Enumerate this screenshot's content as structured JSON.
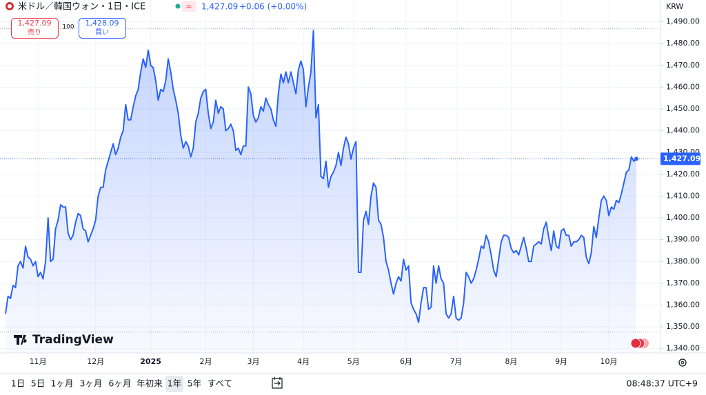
{
  "header": {
    "symbol": "米ドル／韓国ウォン・1日・ICE",
    "price": "1,427.09",
    "change": "+0.06 (+0.00%)",
    "sell": {
      "price": "1,427.09",
      "label": "売り"
    },
    "spread": "100",
    "buy": {
      "price": "1,428.09",
      "label": "買い"
    }
  },
  "brand": "TradingView",
  "toolbar": {
    "ranges": [
      "1日",
      "5日",
      "1ヶ月",
      "3ヶ月",
      "6ヶ月",
      "年初来",
      "1年",
      "5年",
      "すべて"
    ],
    "active": "1年",
    "clock": "08:48:37 UTC+9"
  },
  "chart_data": {
    "type": "area",
    "currency": "KRW",
    "color": "#2962ff",
    "categories": [
      null,
      null,
      null,
      null,
      null,
      null,
      null,
      null,
      null,
      null,
      null,
      null,
      null,
      "11月",
      null,
      null,
      null,
      null,
      null,
      null,
      null,
      null,
      null,
      null,
      null,
      null,
      null,
      null,
      null,
      null,
      null,
      null,
      null,
      null,
      null,
      null,
      "12月",
      null,
      null,
      null,
      null,
      null,
      null,
      null,
      null,
      null,
      null,
      null,
      null,
      null,
      null,
      null,
      null,
      null,
      null,
      null,
      null,
      null,
      "2025",
      null,
      null,
      null,
      null,
      null,
      null,
      null,
      null,
      null,
      null,
      null,
      null,
      null,
      null,
      null,
      null,
      null,
      null,
      null,
      null,
      null,
      "2月",
      null,
      null,
      null,
      null,
      null,
      null,
      null,
      null,
      null,
      null,
      null,
      null,
      null,
      null,
      null,
      null,
      null,
      null,
      "3月",
      null,
      null,
      null,
      null,
      null,
      null,
      null,
      null,
      null,
      null,
      null,
      null,
      null,
      null,
      null,
      null,
      null,
      null,
      null,
      "4月",
      null,
      null,
      null,
      null,
      null,
      null,
      null,
      null,
      null,
      null,
      null,
      null,
      null,
      null,
      null,
      null,
      null,
      null,
      null,
      "5月",
      null,
      null,
      null,
      null,
      null,
      null,
      null,
      null,
      null,
      null,
      null,
      null,
      null,
      null,
      null,
      null,
      null,
      null,
      null,
      null,
      "6月",
      null,
      null,
      null,
      null,
      null,
      null,
      null,
      null,
      null,
      null,
      null,
      null,
      null,
      null,
      null,
      null,
      null,
      null,
      null,
      "7月",
      null,
      null,
      null,
      null,
      null,
      null,
      null,
      null,
      null,
      null,
      null,
      null,
      null,
      null,
      null,
      null,
      null,
      null,
      null,
      null,
      null,
      "8月",
      null,
      null,
      null,
      null,
      null,
      null,
      null,
      null,
      null,
      null,
      null,
      null,
      null,
      null,
      null,
      null,
      null,
      null,
      null,
      "9月",
      null,
      null,
      null,
      null,
      null,
      null,
      null,
      null,
      null,
      null,
      null,
      null,
      null,
      null,
      null,
      null,
      null,
      null,
      "10月",
      null,
      null,
      null,
      null,
      null,
      null,
      null,
      null,
      null,
      null,
      null
    ],
    "values": [
      1356,
      1364,
      1363,
      1369,
      1368,
      1378,
      1380,
      1377,
      1387,
      1382,
      1381,
      1378,
      1380,
      1373,
      1375,
      1372,
      1380,
      1400,
      1380,
      1381,
      1395,
      1399,
      1406,
      1405,
      1405,
      1393,
      1390,
      1392,
      1398,
      1402,
      1401,
      1395,
      1394,
      1389,
      1392,
      1395,
      1399,
      1410,
      1414,
      1414,
      1422,
      1426,
      1430,
      1434,
      1429,
      1432,
      1437,
      1440,
      1452,
      1445,
      1445,
      1451,
      1456,
      1459,
      1467,
      1473,
      1469,
      1477,
      1470,
      1469,
      1463,
      1454,
      1459,
      1458,
      1463,
      1473,
      1467,
      1459,
      1454,
      1448,
      1438,
      1432,
      1435,
      1433,
      1428,
      1432,
      1444,
      1448,
      1455,
      1458,
      1459,
      1448,
      1441,
      1444,
      1454,
      1448,
      1451,
      1450,
      1440,
      1441,
      1443,
      1440,
      1431,
      1432,
      1429,
      1433,
      1433,
      1460,
      1457,
      1447,
      1444,
      1446,
      1451,
      1449,
      1455,
      1452,
      1450,
      1445,
      1442,
      1457,
      1466,
      1462,
      1467,
      1462,
      1467,
      1462,
      1457,
      1468,
      1472,
      1468,
      1451,
      1460,
      1467,
      1486,
      1446,
      1452,
      1419,
      1418,
      1426,
      1414,
      1419,
      1421,
      1424,
      1430,
      1424,
      1432,
      1437,
      1434,
      1427,
      1432,
      1435,
      1375,
      1375,
      1399,
      1403,
      1397,
      1410,
      1416,
      1414,
      1399,
      1397,
      1391,
      1380,
      1376,
      1370,
      1365,
      1370,
      1373,
      1371,
      1381,
      1376,
      1378,
      1361,
      1358,
      1356,
      1352,
      1361,
      1368,
      1368,
      1358,
      1359,
      1378,
      1370,
      1378,
      1372,
      1370,
      1356,
      1354,
      1356,
      1364,
      1354,
      1353,
      1354,
      1361,
      1375,
      1373,
      1370,
      1372,
      1376,
      1381,
      1387,
      1386,
      1392,
      1389,
      1383,
      1376,
      1373,
      1381,
      1389,
      1392,
      1392,
      1391,
      1386,
      1384,
      1385,
      1383,
      1387,
      1391,
      1386,
      1380,
      1380,
      1387,
      1388,
      1389,
      1388,
      1395,
      1398,
      1391,
      1385,
      1394,
      1387,
      1386,
      1394,
      1395,
      1392,
      1392,
      1387,
      1389,
      1389,
      1390,
      1392,
      1391,
      1382,
      1379,
      1384,
      1396,
      1391,
      1400,
      1408,
      1410,
      1408,
      1401,
      1405,
      1404,
      1408,
      1407,
      1411,
      1416,
      1421,
      1422,
      1428,
      1426,
      1427.09
    ],
    "price_line": {
      "value": 1427.09,
      "label": "1,427.09"
    },
    "range_lines": [
      1486.8,
      1347.6
    ],
    "ylim": [
      1338,
      1500
    ],
    "yticks": [
      {
        "value": 1340,
        "label": "1,340.00"
      },
      {
        "value": 1350,
        "label": "1,350.00"
      },
      {
        "value": 1360,
        "label": "1,360.00"
      },
      {
        "value": 1370,
        "label": "1,370.00"
      },
      {
        "value": 1380,
        "label": "1,380.00"
      },
      {
        "value": 1390,
        "label": "1,390.00"
      },
      {
        "value": 1400,
        "label": "1,400.00"
      },
      {
        "value": 1410,
        "label": "1,410.00"
      },
      {
        "value": 1420,
        "label": "1,420.00"
      },
      {
        "value": 1430,
        "label": "1,430.00"
      },
      {
        "value": 1440,
        "label": "1,440.00"
      },
      {
        "value": 1450,
        "label": "1,450.00"
      },
      {
        "value": 1460,
        "label": "1,460.00"
      },
      {
        "value": 1470,
        "label": "1,470.00"
      },
      {
        "value": 1480,
        "label": "1,480.00"
      },
      {
        "value": 1490,
        "label": "1,490.00"
      }
    ],
    "grid": true
  }
}
